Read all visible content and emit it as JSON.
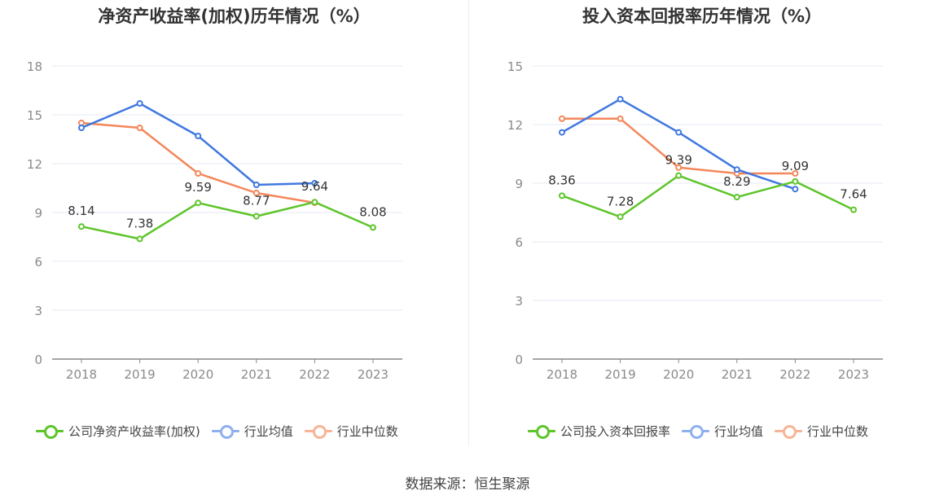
{
  "source": "数据来源：恒生聚源",
  "colors": {
    "company": "#5dc52a",
    "industry_avg": "#3f78e0",
    "industry_median": "#f4875a"
  },
  "chart_data": [
    {
      "type": "line",
      "title": "净资产收益率(加权)历年情况（%）",
      "categories": [
        "2018",
        "2019",
        "2020",
        "2021",
        "2022",
        "2023"
      ],
      "ylim": [
        0,
        18
      ],
      "yticks": [
        "0",
        "3",
        "6",
        "9",
        "12",
        "15",
        "18"
      ],
      "grid": true,
      "legend": "bottom",
      "series": [
        {
          "name": "公司净资产收益率(加权)",
          "values": [
            8.14,
            7.38,
            9.59,
            8.77,
            9.64,
            8.08
          ],
          "labels": [
            "8.14",
            "7.38",
            "9.59",
            "8.77",
            "9.64",
            "8.08"
          ]
        },
        {
          "name": "行业均值",
          "values": [
            14.2,
            15.7,
            13.7,
            10.7,
            10.8,
            null
          ]
        },
        {
          "name": "行业中位数",
          "values": [
            14.5,
            14.2,
            11.4,
            10.2,
            9.6,
            null
          ]
        }
      ]
    },
    {
      "type": "line",
      "title": "投入资本回报率历年情况（%）",
      "categories": [
        "2018",
        "2019",
        "2020",
        "2021",
        "2022",
        "2023"
      ],
      "ylim": [
        0,
        15
      ],
      "yticks": [
        "0",
        "3",
        "6",
        "9",
        "12",
        "15"
      ],
      "grid": true,
      "legend": "bottom",
      "series": [
        {
          "name": "公司投入资本回报率",
          "values": [
            8.36,
            7.28,
            9.39,
            8.29,
            9.09,
            7.64
          ],
          "labels": [
            "8.36",
            "7.28",
            "9.39",
            "8.29",
            "9.09",
            "7.64"
          ]
        },
        {
          "name": "行业均值",
          "values": [
            11.6,
            13.3,
            11.6,
            9.7,
            8.7,
            null
          ]
        },
        {
          "name": "行业中位数",
          "values": [
            12.3,
            12.3,
            9.8,
            9.5,
            9.5,
            null
          ]
        }
      ]
    }
  ]
}
